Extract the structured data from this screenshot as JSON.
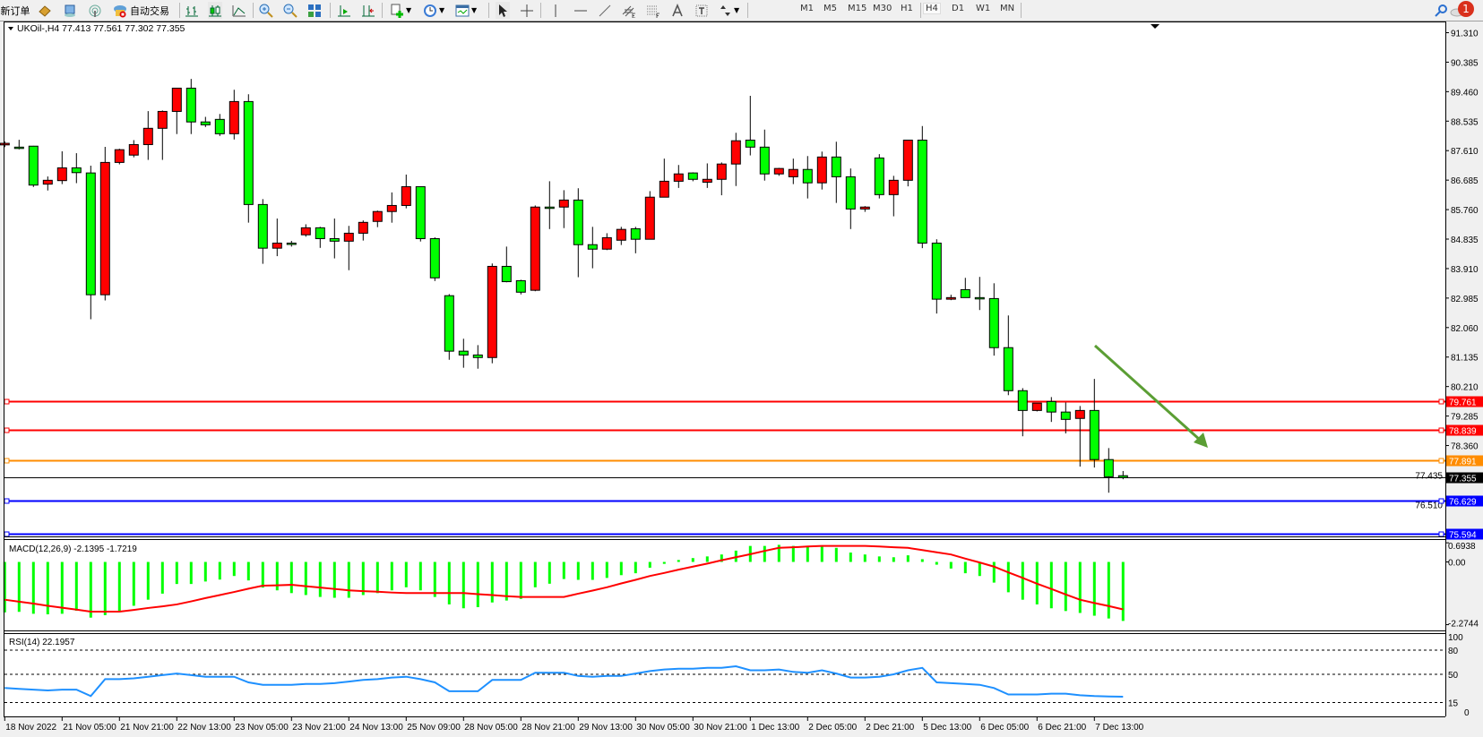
{
  "toolbar": {
    "new_order": "新订单",
    "auto_trading": "自动交易",
    "timeframes": [
      "M1",
      "M5",
      "M15",
      "M30",
      "H1",
      "H4",
      "D1",
      "W1",
      "MN"
    ],
    "active_timeframe": "H4",
    "notification_count": "1"
  },
  "chart": {
    "header": "UKOil-,H4  77.413 77.561 77.302 77.355",
    "colors": {
      "bull": "#ff0000",
      "bear": "#00ff00",
      "background": "#ffffff",
      "arrow": "#5b9e34"
    },
    "levels": [
      {
        "value": "79.761",
        "color": "#ff0000"
      },
      {
        "value": "78.839",
        "color": "#ff0000"
      },
      {
        "value": "77.891",
        "color": "#ff8c00"
      },
      {
        "value": "76.629",
        "color": "#0000ff"
      },
      {
        "value": "75.594",
        "color": "#0000ff"
      }
    ],
    "bid": {
      "value": "77.355",
      "color": "#000000"
    }
  },
  "chart_data": [
    {
      "type": "candlestick",
      "symbol": "UKOil-",
      "timeframe": "H4",
      "price_ticks": [
        "91.310",
        "90.385",
        "89.460",
        "88.535",
        "87.610",
        "86.685",
        "85.760",
        "84.835",
        "83.910",
        "82.985",
        "82.060",
        "81.135",
        "80.210",
        "79.285",
        "78.360",
        "77.435",
        "76.510"
      ],
      "x_tick_labels": [
        "18 Nov 2022",
        "21 Nov 05:00",
        "21 Nov 21:00",
        "22 Nov 13:00",
        "23 Nov 05:00",
        "23 Nov 21:00",
        "24 Nov 13:00",
        "25 Nov 09:00",
        "28 Nov 05:00",
        "28 Nov 21:00",
        "29 Nov 13:00",
        "30 Nov 05:00",
        "30 Nov 21:00",
        "1 Dec 13:00",
        "2 Dec 05:00",
        "2 Dec 21:00",
        "5 Dec 13:00",
        "6 Dec 05:00",
        "6 Dec 21:00",
        "7 Dec 13:00"
      ],
      "ohlc": [
        [
          87.79,
          87.9,
          87.72,
          87.84
        ],
        [
          87.72,
          87.95,
          87.65,
          87.7
        ],
        [
          87.75,
          87.76,
          86.47,
          86.53
        ],
        [
          86.56,
          86.8,
          86.36,
          86.68
        ],
        [
          86.67,
          87.59,
          86.56,
          87.07
        ],
        [
          87.07,
          87.53,
          86.59,
          86.92
        ],
        [
          86.91,
          87.14,
          82.32,
          83.09
        ],
        [
          83.09,
          87.73,
          82.91,
          87.24
        ],
        [
          87.24,
          87.67,
          87.18,
          87.64
        ],
        [
          87.47,
          87.94,
          87.4,
          87.8
        ],
        [
          87.8,
          88.85,
          87.32,
          88.31
        ],
        [
          88.31,
          88.87,
          87.32,
          88.84
        ],
        [
          88.84,
          89.57,
          88.13,
          89.57
        ],
        [
          89.57,
          89.86,
          88.13,
          88.51
        ],
        [
          88.51,
          88.67,
          88.35,
          88.42
        ],
        [
          88.59,
          88.76,
          88.07,
          88.14
        ],
        [
          88.14,
          89.52,
          87.96,
          89.15
        ],
        [
          89.15,
          89.38,
          85.35,
          85.92
        ],
        [
          85.92,
          86.09,
          84.06,
          84.55
        ],
        [
          84.55,
          85.48,
          84.3,
          84.71
        ],
        [
          84.71,
          84.78,
          84.6,
          84.7
        ],
        [
          84.97,
          85.3,
          84.91,
          85.19
        ],
        [
          85.19,
          85.22,
          84.56,
          84.85
        ],
        [
          84.85,
          85.48,
          84.23,
          84.77
        ],
        [
          84.77,
          85.25,
          83.86,
          85.02
        ],
        [
          85.02,
          85.42,
          84.79,
          85.36
        ],
        [
          85.39,
          85.73,
          85.21,
          85.7
        ],
        [
          85.7,
          86.3,
          85.35,
          85.89
        ],
        [
          85.89,
          86.86,
          85.8,
          86.48
        ],
        [
          86.48,
          86.48,
          84.76,
          84.85
        ],
        [
          84.85,
          84.89,
          83.52,
          83.62
        ],
        [
          83.06,
          83.11,
          81.05,
          81.32
        ],
        [
          81.32,
          81.71,
          80.8,
          81.2
        ],
        [
          81.2,
          81.51,
          80.77,
          81.12
        ],
        [
          81.12,
          84.07,
          80.94,
          83.98
        ],
        [
          83.98,
          84.6,
          83.48,
          83.5
        ],
        [
          83.53,
          83.56,
          83.1,
          83.17
        ],
        [
          83.23,
          85.89,
          83.2,
          85.84
        ],
        [
          85.84,
          86.65,
          85.15,
          85.83
        ],
        [
          85.84,
          86.37,
          85.18,
          86.06
        ],
        [
          86.06,
          86.43,
          83.64,
          84.66
        ],
        [
          84.66,
          85.22,
          83.92,
          84.52
        ],
        [
          84.52,
          85.02,
          84.49,
          84.88
        ],
        [
          84.8,
          85.22,
          84.65,
          85.14
        ],
        [
          85.16,
          85.22,
          84.39,
          84.83
        ],
        [
          84.83,
          86.34,
          84.83,
          86.15
        ],
        [
          86.15,
          87.36,
          86.15,
          86.65
        ],
        [
          86.65,
          87.16,
          86.44,
          86.88
        ],
        [
          86.91,
          86.93,
          86.65,
          86.71
        ],
        [
          86.62,
          87.21,
          86.44,
          86.71
        ],
        [
          86.71,
          87.24,
          86.21,
          87.19
        ],
        [
          87.19,
          88.17,
          86.5,
          87.92
        ],
        [
          87.94,
          89.33,
          87.46,
          87.72
        ],
        [
          87.72,
          88.27,
          86.67,
          86.88
        ],
        [
          86.88,
          87.07,
          86.82,
          87.05
        ],
        [
          86.79,
          87.36,
          86.56,
          87.02
        ],
        [
          87.02,
          87.44,
          86.11,
          86.6
        ],
        [
          86.6,
          87.58,
          86.39,
          87.41
        ],
        [
          87.41,
          87.89,
          85.97,
          86.79
        ],
        [
          86.79,
          87.05,
          85.15,
          85.78
        ],
        [
          85.78,
          85.87,
          85.69,
          85.84
        ],
        [
          87.38,
          87.5,
          86.11,
          86.23
        ],
        [
          86.23,
          86.82,
          85.55,
          86.68
        ],
        [
          86.68,
          87.94,
          86.49,
          87.94
        ],
        [
          87.94,
          88.38,
          84.55,
          84.71
        ],
        [
          84.71,
          84.83,
          82.5,
          82.95
        ],
        [
          82.95,
          83.09,
          82.92,
          83.0
        ],
        [
          83.25,
          83.62,
          83.0,
          83.0
        ],
        [
          83.0,
          83.65,
          82.61,
          82.99
        ],
        [
          82.97,
          83.45,
          81.18,
          81.43
        ],
        [
          81.43,
          82.44,
          79.94,
          80.08
        ],
        [
          80.08,
          80.16,
          78.65,
          79.46
        ],
        [
          79.46,
          79.69,
          79.43,
          79.69
        ],
        [
          79.74,
          79.88,
          79.1,
          79.41
        ],
        [
          79.41,
          79.71,
          78.74,
          79.18
        ],
        [
          79.21,
          79.6,
          77.7,
          79.46
        ],
        [
          79.46,
          80.45,
          77.67,
          77.92
        ],
        [
          77.92,
          78.28,
          76.88,
          77.38
        ],
        [
          77.413,
          77.561,
          77.302,
          77.355
        ]
      ]
    },
    {
      "type": "bar",
      "title": "MACD(12,26,9) -2.1395 -1.7219",
      "y_ticks": [
        "0.6938",
        "0.00",
        "-2.2744"
      ],
      "ylim": [
        -2.2744,
        0.6938
      ],
      "macd_color": "#00ff00",
      "signal_color": "#ff0000",
      "macd": [
        -1.83,
        -1.81,
        -1.88,
        -1.9,
        -1.88,
        -1.77,
        -2.02,
        -1.93,
        -1.77,
        -1.59,
        -1.37,
        -1.15,
        -0.8,
        -0.8,
        -0.71,
        -0.64,
        -0.51,
        -0.67,
        -0.93,
        -1.03,
        -1.13,
        -1.2,
        -1.27,
        -1.3,
        -1.3,
        -1.2,
        -1.13,
        -1.03,
        -0.92,
        -1.03,
        -1.27,
        -1.54,
        -1.68,
        -1.64,
        -1.47,
        -1.4,
        -1.34,
        -0.92,
        -0.79,
        -0.62,
        -0.65,
        -0.65,
        -0.58,
        -0.48,
        -0.41,
        -0.21,
        -0.07,
        0.07,
        0.14,
        0.2,
        0.27,
        0.41,
        0.58,
        0.58,
        0.62,
        0.58,
        0.58,
        0.58,
        0.51,
        0.34,
        0.27,
        0.2,
        0.17,
        0.24,
        0.1,
        -0.1,
        -0.24,
        -0.41,
        -0.51,
        -0.75,
        -1.1,
        -1.37,
        -1.54,
        -1.68,
        -1.78,
        -1.85,
        -1.95,
        -2.05,
        -2.1395
      ],
      "signal": [
        -1.37,
        -1.44,
        -1.51,
        -1.59,
        -1.66,
        -1.73,
        -1.8,
        -1.8,
        -1.8,
        -1.74,
        -1.67,
        -1.61,
        -1.54,
        -1.43,
        -1.31,
        -1.2,
        -1.09,
        -0.97,
        -0.86,
        -0.85,
        -0.83,
        -0.88,
        -0.93,
        -0.98,
        -1.03,
        -1.06,
        -1.08,
        -1.11,
        -1.13,
        -1.13,
        -1.13,
        -1.13,
        -1.13,
        -1.17,
        -1.2,
        -1.24,
        -1.27,
        -1.27,
        -1.27,
        -1.27,
        -1.15,
        -1.04,
        -0.92,
        -0.78,
        -0.65,
        -0.51,
        -0.4,
        -0.28,
        -0.17,
        -0.06,
        0.06,
        0.17,
        0.28,
        0.4,
        0.51,
        0.53,
        0.56,
        0.58,
        0.58,
        0.58,
        0.58,
        0.56,
        0.53,
        0.51,
        0.43,
        0.35,
        0.27,
        0.12,
        -0.02,
        -0.17,
        -0.38,
        -0.58,
        -0.79,
        -0.98,
        -1.18,
        -1.37,
        -1.49,
        -1.6,
        -1.7219
      ]
    },
    {
      "type": "line",
      "title": "RSI(14) 22.1957",
      "y_ticks": [
        "100",
        "80",
        "50",
        "15",
        "0"
      ],
      "levels": [
        80,
        50,
        15
      ],
      "ylim": [
        0,
        100
      ],
      "color": "#1e90ff",
      "values": [
        33,
        32,
        31,
        30,
        31,
        31,
        23,
        44,
        44,
        45,
        47,
        49,
        51,
        49,
        47,
        47,
        47,
        40,
        37,
        37,
        37,
        38,
        38,
        39,
        41,
        43,
        44,
        46,
        47,
        44,
        40,
        29,
        29,
        29,
        43,
        43,
        43,
        52,
        52,
        52,
        48,
        47,
        48,
        48,
        51,
        54,
        56,
        57,
        57,
        58,
        58,
        60,
        55,
        55,
        56,
        53,
        52,
        55,
        51,
        46,
        46,
        47,
        50,
        55,
        58,
        40,
        39,
        38,
        37,
        33,
        25,
        25,
        25,
        26,
        26,
        24,
        23,
        22.5,
        22.1957
      ]
    }
  ]
}
